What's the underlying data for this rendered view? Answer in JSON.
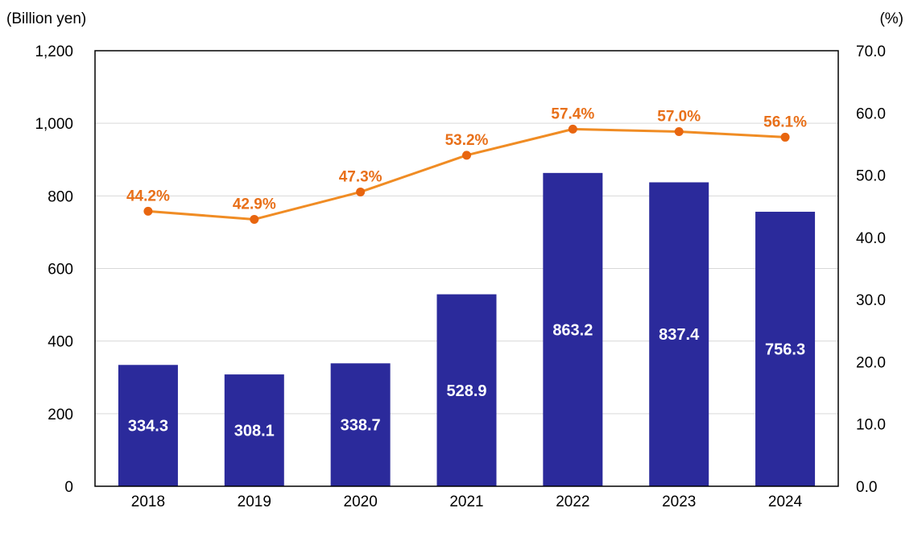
{
  "chart_data": {
    "type": "bar",
    "categories": [
      "2018",
      "2019",
      "2020",
      "2021",
      "2022",
      "2023",
      "2024"
    ],
    "series": [
      {
        "type": "bar",
        "axis": "left",
        "values": [
          334.3,
          308.1,
          338.7,
          528.9,
          863.2,
          837.4,
          756.3
        ],
        "labels": [
          "334.3",
          "308.1",
          "338.7",
          "528.9",
          "863.2",
          "837.4",
          "756.3"
        ],
        "color": "#2b2a9b"
      },
      {
        "type": "line",
        "axis": "right",
        "values": [
          44.2,
          42.9,
          47.3,
          53.2,
          57.4,
          57.0,
          56.1
        ],
        "labels": [
          "44.2%",
          "42.9%",
          "47.3%",
          "53.2%",
          "57.4%",
          "57.0%",
          "56.1%"
        ],
        "color": "#f08c24",
        "label_color": "#e8701a",
        "marker_color": "#e8650f"
      }
    ],
    "y_left": {
      "unit_label": "(Billion yen)",
      "range": [
        0,
        1200
      ],
      "ticks": [
        0,
        200,
        400,
        600,
        800,
        1000,
        1200
      ],
      "tick_labels": [
        "0",
        "200",
        "400",
        "600",
        "800",
        "1,000",
        "1,200"
      ]
    },
    "y_right": {
      "unit_label": "(%)",
      "range": [
        0,
        70
      ],
      "ticks": [
        0,
        10,
        20,
        30,
        40,
        50,
        60,
        70
      ],
      "tick_labels": [
        "0.0",
        "10.0",
        "20.0",
        "30.0",
        "40.0",
        "50.0",
        "60.0",
        "70.0"
      ]
    },
    "grid": true,
    "grid_color": "#d9d9d9",
    "legend": "none"
  }
}
